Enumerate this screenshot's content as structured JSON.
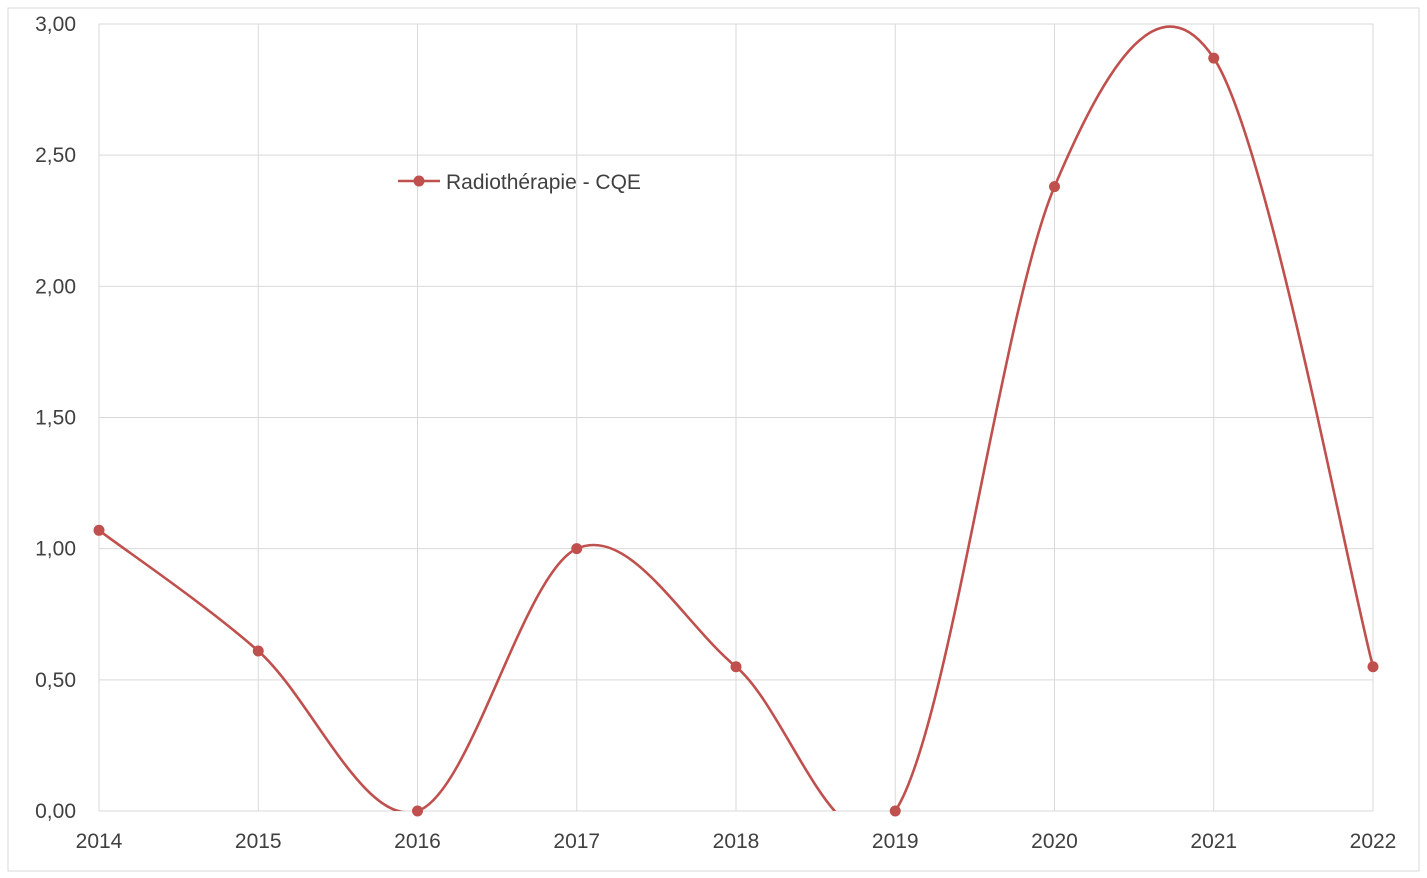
{
  "chart_data": {
    "type": "line",
    "title": "",
    "xlabel": "",
    "ylabel": "",
    "categories": [
      "2014",
      "2015",
      "2016",
      "2017",
      "2018",
      "2019",
      "2020",
      "2021",
      "2022"
    ],
    "series": [
      {
        "name": "Radiothérapie - CQE",
        "values": [
          1.07,
          0.61,
          0.0,
          1.0,
          0.55,
          0.0,
          2.38,
          2.87,
          0.55
        ],
        "color": "#c0504d",
        "smooth": true,
        "markers": true
      }
    ],
    "ylim": [
      0,
      3
    ],
    "yticks": [
      "0,00",
      "0,50",
      "1,00",
      "1,50",
      "2,00",
      "2,50",
      "3,00"
    ],
    "ytick_values": [
      0,
      0.5,
      1,
      1.5,
      2,
      2.5,
      3
    ],
    "grid": {
      "horizontal": true,
      "vertical": true
    },
    "legend_position": "top-left, inside plot",
    "colors": {
      "series": "#c0504d",
      "grid": "#d9d9d9",
      "axis_text": "#404040",
      "frame": "#d9d9d9"
    }
  }
}
